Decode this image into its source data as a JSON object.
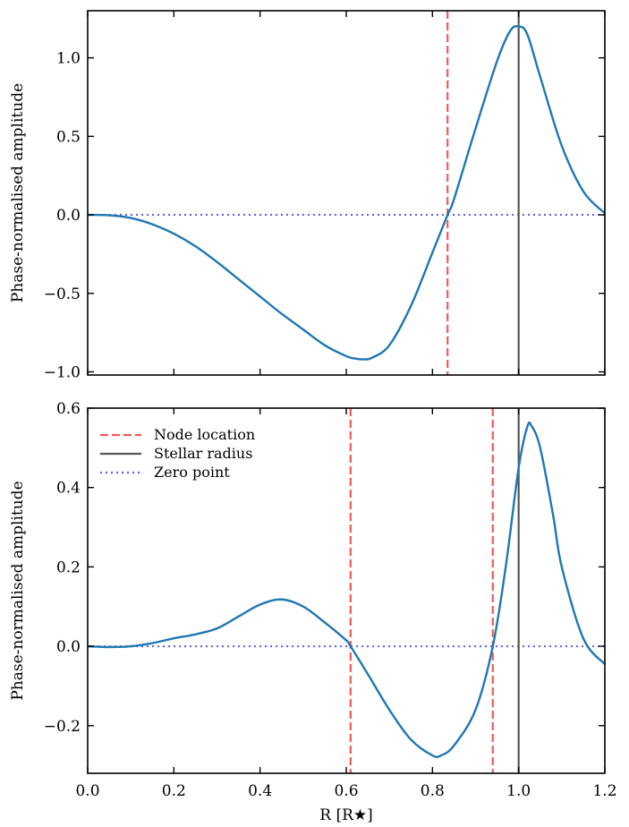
{
  "chart_data": [
    {
      "type": "line",
      "xlim": [
        0.0,
        1.2
      ],
      "ylim": [
        -1.02,
        1.3
      ],
      "xlabel": "",
      "ylabel": "Phase-normalised amplitude",
      "xticks": [
        0.0,
        0.2,
        0.4,
        0.6,
        0.8,
        1.0,
        1.2
      ],
      "xtick_labels_shown": false,
      "yticks": [
        -1.0,
        -0.5,
        0.0,
        0.5,
        1.0
      ],
      "ytick_labels": [
        "−1.0",
        "−0.5",
        "0.0",
        "0.5",
        "1.0"
      ],
      "grid": false,
      "series": [
        {
          "color": "#1f77b4",
          "style": "solid",
          "x": [
            0.0,
            0.05,
            0.1,
            0.15,
            0.2,
            0.25,
            0.3,
            0.35,
            0.4,
            0.45,
            0.5,
            0.55,
            0.6,
            0.62,
            0.64,
            0.66,
            0.7,
            0.75,
            0.8,
            0.835,
            0.85,
            0.9,
            0.95,
            0.98,
            1.0,
            1.02,
            1.05,
            1.1,
            1.15,
            1.2
          ],
          "y": [
            0.0,
            -0.003,
            -0.02,
            -0.06,
            -0.12,
            -0.2,
            -0.3,
            -0.41,
            -0.52,
            -0.63,
            -0.73,
            -0.83,
            -0.9,
            -0.915,
            -0.92,
            -0.91,
            -0.83,
            -0.58,
            -0.24,
            0.0,
            0.1,
            0.55,
            0.98,
            1.17,
            1.2,
            1.15,
            0.88,
            0.44,
            0.15,
            0.01
          ]
        }
      ],
      "vlines": [
        {
          "name": "Node location",
          "x": 0.835,
          "color": "#f25a5a",
          "style": "dashed"
        },
        {
          "name": "Stellar radius",
          "x": 1.0,
          "color": "#555555",
          "style": "solid"
        }
      ],
      "hlines": [
        {
          "name": "Zero point",
          "y": 0.0,
          "color": "#5b5bf0",
          "style": "dotted"
        }
      ]
    },
    {
      "type": "line",
      "xlim": [
        0.0,
        1.2
      ],
      "ylim": [
        -0.32,
        0.6
      ],
      "xlabel": "R [R★]",
      "ylabel": "Phase-normalised amplitude",
      "xticks": [
        0.0,
        0.2,
        0.4,
        0.6,
        0.8,
        1.0,
        1.2
      ],
      "xtick_labels": [
        "0.0",
        "0.2",
        "0.4",
        "0.6",
        "0.8",
        "1.0",
        "1.2"
      ],
      "yticks": [
        -0.2,
        0.0,
        0.2,
        0.4,
        0.6
      ],
      "ytick_labels": [
        "−0.2",
        "0.0",
        "0.2",
        "0.4",
        "0.6"
      ],
      "grid": false,
      "legend": {
        "placement": "top-left",
        "entries": [
          "Node location",
          "Stellar radius",
          "Zero point"
        ]
      },
      "series": [
        {
          "color": "#1f77b4",
          "style": "solid",
          "x": [
            0.0,
            0.05,
            0.1,
            0.15,
            0.2,
            0.25,
            0.3,
            0.35,
            0.4,
            0.45,
            0.5,
            0.55,
            0.6,
            0.61,
            0.65,
            0.7,
            0.75,
            0.8,
            0.82,
            0.85,
            0.9,
            0.94,
            0.97,
            1.0,
            1.02,
            1.03,
            1.05,
            1.08,
            1.1,
            1.15,
            1.2
          ],
          "y": [
            0.0,
            -0.002,
            0.0,
            0.008,
            0.02,
            0.03,
            0.045,
            0.075,
            0.105,
            0.118,
            0.1,
            0.06,
            0.015,
            0.0,
            -0.07,
            -0.16,
            -0.235,
            -0.275,
            -0.275,
            -0.25,
            -0.16,
            0.0,
            0.2,
            0.45,
            0.553,
            0.555,
            0.5,
            0.33,
            0.2,
            0.02,
            -0.045
          ]
        }
      ],
      "vlines": [
        {
          "name": "Node location",
          "x": 0.61,
          "color": "#f25a5a",
          "style": "dashed"
        },
        {
          "name": "Node location",
          "x": 0.94,
          "color": "#f25a5a",
          "style": "dashed"
        },
        {
          "name": "Stellar radius",
          "x": 1.0,
          "color": "#555555",
          "style": "solid"
        }
      ],
      "hlines": [
        {
          "name": "Zero point",
          "y": 0.0,
          "color": "#5b5bf0",
          "style": "dotted"
        }
      ]
    }
  ]
}
